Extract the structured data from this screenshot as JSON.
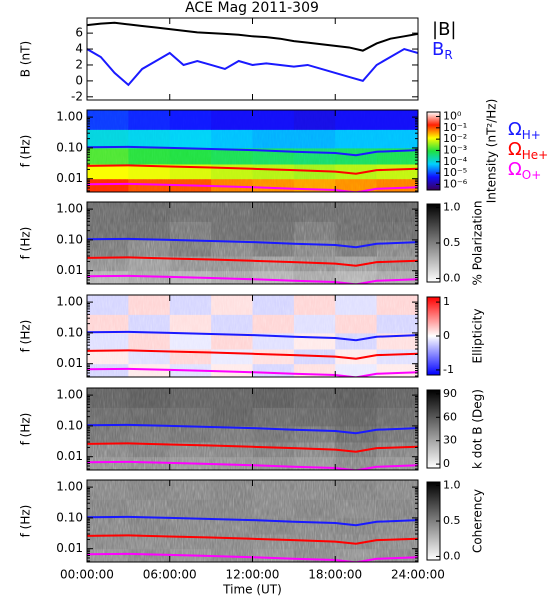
{
  "chart_data": [
    {
      "type": "line",
      "title": "ACE Mag 2011-309",
      "ylabel": "B (nT)",
      "legend": true,
      "ylim": [
        -2.4,
        7.9
      ],
      "yticks": [
        -2,
        0,
        2,
        4,
        6
      ],
      "x": [
        0,
        1,
        2,
        3,
        4,
        5,
        6,
        7,
        8,
        9,
        10,
        11,
        12,
        13,
        14,
        15,
        16,
        17,
        18,
        19,
        20,
        21,
        22,
        23,
        24
      ],
      "series": [
        {
          "name": "|B|",
          "color": "#000000",
          "values": [
            7.0,
            7.2,
            7.3,
            7.1,
            6.9,
            6.7,
            6.5,
            6.3,
            6.1,
            6.0,
            5.9,
            5.8,
            5.6,
            5.5,
            5.3,
            5.0,
            4.8,
            4.6,
            4.4,
            4.2,
            3.8,
            4.7,
            5.3,
            5.6,
            5.9
          ]
        },
        {
          "name": "B",
          "sub": "R",
          "color": "#1a1aff",
          "values": [
            4.0,
            3.0,
            1.0,
            -0.5,
            1.5,
            2.5,
            3.5,
            2.0,
            2.5,
            2.0,
            1.5,
            2.5,
            2.0,
            2.2,
            2.0,
            1.8,
            2.0,
            1.5,
            1.0,
            0.5,
            0.0,
            2.0,
            3.0,
            4.0,
            3.5
          ]
        }
      ]
    },
    {
      "type": "heatmap",
      "ylabel": "f (Hz)",
      "ylog": true,
      "legend": true,
      "ylim": [
        0.0037,
        1.7
      ],
      "yticks": [
        {
          "value": 1,
          "label": "1.00"
        },
        {
          "value": 0.1,
          "label": "0.10"
        },
        0.01
      ],
      "xbins": [
        0,
        3,
        6,
        9,
        12,
        15,
        18,
        21,
        24
      ],
      "ybins": [
        0.0037,
        0.01,
        0.03,
        0.1,
        0.4,
        1.7
      ],
      "z": [
        [
          0.15,
          0.1,
          0.1,
          0.06,
          0.05,
          0.04,
          0.05,
          0.06
        ],
        [
          0.012,
          0.01,
          0.008,
          0.006,
          0.005,
          0.004,
          0.005,
          0.006
        ],
        [
          0.0015,
          0.001,
          0.0009,
          0.0007,
          0.0006,
          0.0005,
          0.0006,
          0.0007
        ],
        [
          0.0001,
          8e-05,
          7e-05,
          5e-05,
          4e-05,
          4e-05,
          5e-05,
          5e-05
        ],
        [
          8e-06,
          6e-06,
          5e-06,
          4e-06,
          4e-06,
          3e-06,
          4e-06,
          4e-06
        ]
      ],
      "colorbar_label": "Intensity (nT²/Hz)",
      "clog": true,
      "clim": [
        3.2e-07,
        2.5
      ],
      "colormap": [
        "#3a005a",
        "#1010ff",
        "#00d0ff",
        "#20e040",
        "#ffff00",
        "#ff2000",
        "#ffffff"
      ],
      "cticks": [
        {
          "value": 1,
          "label": "10⁰"
        },
        {
          "value": 0.1,
          "label": "10⁻¹"
        },
        {
          "value": 0.01,
          "label": "10⁻²"
        },
        {
          "value": 0.001,
          "label": "10⁻³"
        },
        {
          "value": 0.0001,
          "label": "10⁻⁴"
        },
        {
          "value": 1e-05,
          "label": "10⁻⁵"
        },
        {
          "value": 1e-06,
          "label": "10⁻⁶"
        }
      ],
      "x": [
        0,
        3,
        6,
        9,
        12,
        15,
        18,
        19.5,
        21,
        24
      ],
      "series": [
        {
          "name": "Ω",
          "sub": "H+",
          "color": "#1a1aff",
          "values": [
            0.105,
            0.108,
            0.1,
            0.092,
            0.085,
            0.075,
            0.068,
            0.058,
            0.075,
            0.085
          ]
        },
        {
          "name": "Ω",
          "sub": "He+",
          "color": "#ff0000",
          "values": [
            0.026,
            0.027,
            0.025,
            0.023,
            0.021,
            0.019,
            0.017,
            0.0145,
            0.019,
            0.021
          ]
        },
        {
          "name": "Ω",
          "sub": "O+",
          "color": "#ff00ff",
          "values": [
            0.0066,
            0.0068,
            0.0063,
            0.0058,
            0.0053,
            0.0047,
            0.0043,
            0.0036,
            0.0047,
            0.0053
          ]
        }
      ]
    },
    {
      "type": "heatmap",
      "ylabel": "f (Hz)",
      "ylog": true,
      "ylim": [
        0.0037,
        1.7
      ],
      "yticks": [
        {
          "value": 1,
          "label": "1.00"
        },
        {
          "value": 0.1,
          "label": "0.10"
        },
        0.01
      ],
      "xbins": [
        0,
        3,
        6,
        9,
        12,
        15,
        18,
        21,
        24
      ],
      "ybins": [
        0.0037,
        0.01,
        0.03,
        0.1,
        0.4,
        1.7
      ],
      "z": [
        [
          0.3,
          0.35,
          0.3,
          0.35,
          0.3,
          0.35,
          0.3,
          0.35
        ],
        [
          0.45,
          0.4,
          0.45,
          0.45,
          0.4,
          0.45,
          0.4,
          0.45
        ],
        [
          0.55,
          0.5,
          0.55,
          0.5,
          0.55,
          0.5,
          0.55,
          0.5
        ],
        [
          0.6,
          0.6,
          0.55,
          0.6,
          0.6,
          0.55,
          0.6,
          0.6
        ],
        [
          0.6,
          0.62,
          0.6,
          0.6,
          0.62,
          0.6,
          0.6,
          0.62
        ]
      ],
      "colorbar_label": "% Polarization",
      "clim": [
        -0.05,
        1.05
      ],
      "colormap": [
        "#ffffff",
        "#000000"
      ],
      "cticks": [
        {
          "value": 1,
          "label": "1.0"
        },
        0.5,
        {
          "value": 0,
          "label": "0.0"
        }
      ],
      "x": [
        0,
        3,
        6,
        9,
        12,
        15,
        18,
        19.5,
        21,
        24
      ],
      "series": [
        {
          "color": "#1a1aff",
          "values": [
            0.105,
            0.108,
            0.1,
            0.092,
            0.085,
            0.075,
            0.068,
            0.058,
            0.075,
            0.085
          ]
        },
        {
          "color": "#ff0000",
          "values": [
            0.026,
            0.027,
            0.025,
            0.023,
            0.021,
            0.019,
            0.017,
            0.0145,
            0.019,
            0.021
          ]
        },
        {
          "color": "#ff00ff",
          "values": [
            0.0066,
            0.0068,
            0.0063,
            0.0058,
            0.0053,
            0.0047,
            0.0043,
            0.0036,
            0.0047,
            0.0053
          ]
        }
      ]
    },
    {
      "type": "heatmap",
      "ylabel": "f (Hz)",
      "ylog": true,
      "ylim": [
        0.0037,
        1.7
      ],
      "yticks": [
        {
          "value": 1,
          "label": "1.00"
        },
        {
          "value": 0.1,
          "label": "0.10"
        },
        0.01
      ],
      "xbins": [
        0,
        3,
        6,
        9,
        12,
        15,
        18,
        21,
        24
      ],
      "ybins": [
        0.0037,
        0.01,
        0.03,
        0.1,
        0.4,
        1.7
      ],
      "z": [
        [
          -0.2,
          0.1,
          -0.15,
          0.1,
          -0.2,
          0.15,
          -0.1,
          0.1
        ],
        [
          0.1,
          -0.15,
          0.2,
          -0.1,
          0.15,
          -0.2,
          0.1,
          -0.15
        ],
        [
          -0.15,
          0.2,
          -0.1,
          0.2,
          -0.15,
          0.1,
          -0.2,
          0.15
        ],
        [
          0.2,
          -0.2,
          0.15,
          -0.2,
          0.2,
          -0.15,
          0.2,
          -0.2
        ],
        [
          -0.2,
          0.2,
          -0.2,
          0.15,
          -0.2,
          0.2,
          -0.15,
          0.2
        ]
      ],
      "colorbar_label": "Ellipticity",
      "clim": [
        -1.15,
        1.15
      ],
      "colormap": [
        "#0000ff",
        "#ffffff",
        "#ff0000"
      ],
      "cticks": [
        1,
        0,
        -1
      ],
      "x": [
        0,
        3,
        6,
        9,
        12,
        15,
        18,
        19.5,
        21,
        24
      ],
      "series": [
        {
          "color": "#1a1aff",
          "values": [
            0.105,
            0.108,
            0.1,
            0.092,
            0.085,
            0.075,
            0.068,
            0.058,
            0.075,
            0.085
          ]
        },
        {
          "color": "#ff0000",
          "values": [
            0.026,
            0.027,
            0.025,
            0.023,
            0.021,
            0.019,
            0.017,
            0.0145,
            0.019,
            0.021
          ]
        },
        {
          "color": "#ff00ff",
          "values": [
            0.0066,
            0.0068,
            0.0063,
            0.0058,
            0.0053,
            0.0047,
            0.0043,
            0.0036,
            0.0047,
            0.0053
          ]
        }
      ]
    },
    {
      "type": "heatmap",
      "ylabel": "f (Hz)",
      "ylog": true,
      "ylim": [
        0.0037,
        1.7
      ],
      "yticks": [
        {
          "value": 1,
          "label": "1.00"
        },
        {
          "value": 0.1,
          "label": "0.10"
        },
        0.01
      ],
      "xbins": [
        0,
        3,
        6,
        9,
        12,
        15,
        18,
        21,
        24
      ],
      "ybins": [
        0.0037,
        0.01,
        0.03,
        0.1,
        0.4,
        1.7
      ],
      "z": [
        [
          40,
          42,
          38,
          40,
          42,
          38,
          45,
          40
        ],
        [
          45,
          48,
          45,
          46,
          48,
          45,
          50,
          46
        ],
        [
          52,
          50,
          52,
          50,
          52,
          50,
          55,
          52
        ],
        [
          55,
          56,
          55,
          58,
          55,
          56,
          58,
          55
        ],
        [
          58,
          60,
          58,
          58,
          60,
          58,
          60,
          58
        ]
      ],
      "colorbar_label": "k dot B (Deg)",
      "clim": [
        -5,
        95
      ],
      "colormap": [
        "#ffffff",
        "#000000"
      ],
      "cticks": [
        90,
        60,
        30,
        0
      ],
      "x": [
        0,
        3,
        6,
        9,
        12,
        15,
        18,
        19.5,
        21,
        24
      ],
      "series": [
        {
          "color": "#1a1aff",
          "values": [
            0.105,
            0.108,
            0.1,
            0.092,
            0.085,
            0.075,
            0.068,
            0.058,
            0.075,
            0.085
          ]
        },
        {
          "color": "#ff0000",
          "values": [
            0.026,
            0.027,
            0.025,
            0.023,
            0.021,
            0.019,
            0.017,
            0.0145,
            0.019,
            0.021
          ]
        },
        {
          "color": "#ff00ff",
          "values": [
            0.0066,
            0.0068,
            0.0063,
            0.0058,
            0.0053,
            0.0047,
            0.0043,
            0.0036,
            0.0047,
            0.0053
          ]
        }
      ]
    },
    {
      "type": "heatmap",
      "ylabel": "f (Hz)",
      "ylog": true,
      "ylim": [
        0.0037,
        1.7
      ],
      "yticks": [
        {
          "value": 1,
          "label": "1.00"
        },
        {
          "value": 0.1,
          "label": "0.10"
        },
        0.01
      ],
      "xbins": [
        0,
        3,
        6,
        9,
        12,
        15,
        18,
        21,
        24
      ],
      "ybins": [
        0.0037,
        0.01,
        0.03,
        0.1,
        0.4,
        1.7
      ],
      "z": [
        [
          0.45,
          0.5,
          0.45,
          0.5,
          0.45,
          0.5,
          0.45,
          0.5
        ],
        [
          0.5,
          0.48,
          0.5,
          0.5,
          0.48,
          0.5,
          0.5,
          0.48
        ],
        [
          0.5,
          0.52,
          0.5,
          0.5,
          0.52,
          0.5,
          0.52,
          0.5
        ],
        [
          0.52,
          0.5,
          0.52,
          0.52,
          0.5,
          0.52,
          0.5,
          0.52
        ],
        [
          0.5,
          0.52,
          0.5,
          0.52,
          0.5,
          0.5,
          0.52,
          0.5
        ]
      ],
      "colorbar_label": "Coherency",
      "clim": [
        -0.05,
        1.05
      ],
      "colormap": [
        "#ffffff",
        "#000000"
      ],
      "cticks": [
        {
          "value": 1,
          "label": "1.0"
        },
        0.5,
        {
          "value": 0,
          "label": "0.0"
        }
      ],
      "xlabel": "Time (UT)",
      "xlim": [
        0,
        24
      ],
      "xticks": [
        {
          "value": 0,
          "label": "00:00:00"
        },
        {
          "value": 6,
          "label": "06:00:00"
        },
        {
          "value": 12,
          "label": "12:00:00"
        },
        {
          "value": 18,
          "label": "18:00:00"
        },
        {
          "value": 24,
          "label": "24:00:00"
        }
      ],
      "x": [
        0,
        3,
        6,
        9,
        12,
        15,
        18,
        19.5,
        21,
        24
      ],
      "series": [
        {
          "color": "#1a1aff",
          "values": [
            0.105,
            0.108,
            0.1,
            0.092,
            0.085,
            0.075,
            0.068,
            0.058,
            0.075,
            0.085
          ]
        },
        {
          "color": "#ff0000",
          "values": [
            0.026,
            0.027,
            0.025,
            0.023,
            0.021,
            0.019,
            0.017,
            0.0145,
            0.019,
            0.021
          ]
        },
        {
          "color": "#ff00ff",
          "values": [
            0.0066,
            0.0068,
            0.0063,
            0.0058,
            0.0053,
            0.0047,
            0.0043,
            0.0036,
            0.0047,
            0.0053
          ]
        }
      ]
    }
  ]
}
